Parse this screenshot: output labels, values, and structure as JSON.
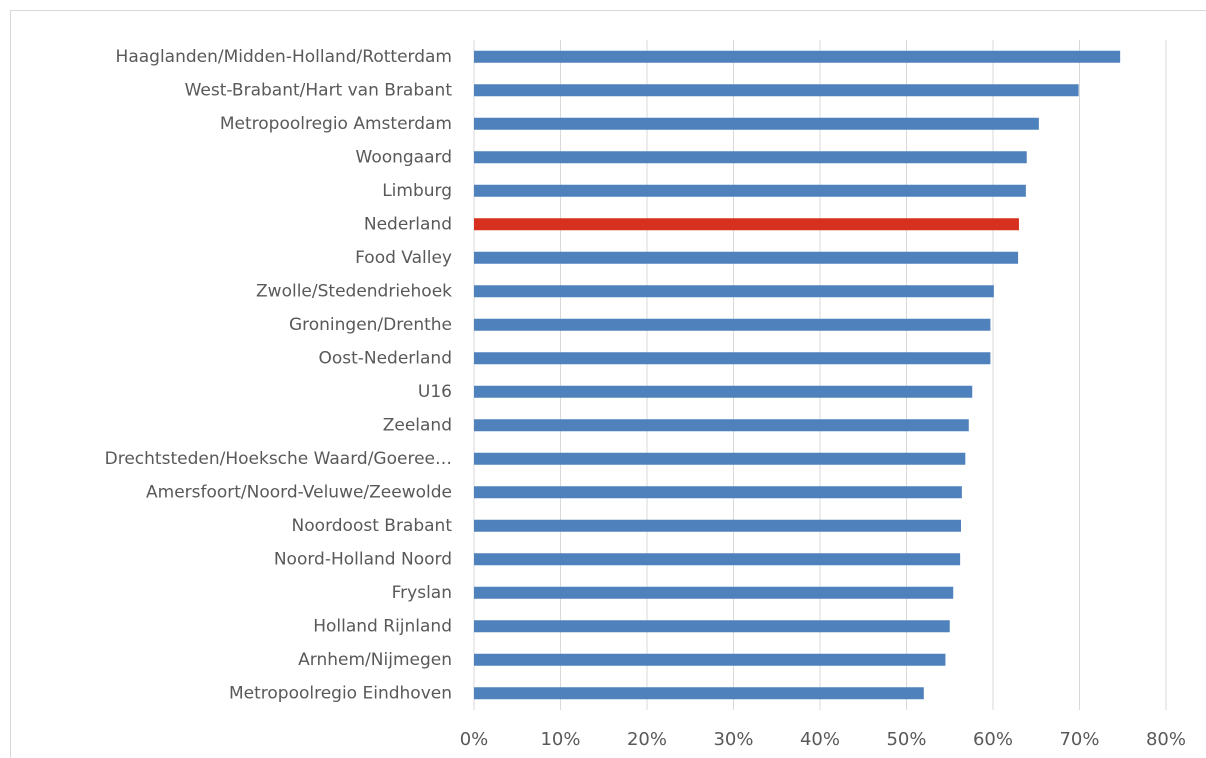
{
  "chart_data": {
    "type": "barh",
    "categories": [
      "Haaglanden/Midden-Holland/Rotterdam",
      "West-Brabant/Hart van Brabant",
      "Metropoolregio Amsterdam",
      "Woongaard",
      "Limburg",
      "Nederland",
      "Food Valley",
      "Zwolle/Stedendriehoek",
      "Groningen/Drenthe",
      "Oost-Nederland",
      "U16",
      "Zeeland",
      "Drechtsteden/Hoeksche Waard/Goeree…",
      "Amersfoort/Noord-Veluwe/Zeewolde",
      "Noordoost Brabant",
      "Noord-Holland Noord",
      "Fryslan",
      "Holland Rijnland",
      "Arnhem/Nijmegen",
      "Metropoolregio Eindhoven"
    ],
    "values": [
      74.7,
      69.9,
      65.3,
      63.9,
      63.8,
      63.0,
      62.9,
      60.1,
      59.7,
      59.7,
      57.6,
      57.2,
      56.8,
      56.4,
      56.3,
      56.2,
      55.4,
      55.0,
      54.5,
      52.0
    ],
    "colors": [
      "#4f81bd",
      "#4f81bd",
      "#4f81bd",
      "#4f81bd",
      "#4f81bd",
      "#d7301f",
      "#4f81bd",
      "#4f81bd",
      "#4f81bd",
      "#4f81bd",
      "#4f81bd",
      "#4f81bd",
      "#4f81bd",
      "#4f81bd",
      "#4f81bd",
      "#4f81bd",
      "#4f81bd",
      "#4f81bd",
      "#4f81bd",
      "#4f81bd"
    ],
    "xlim": [
      0,
      80
    ],
    "xticks": [
      {
        "value": 0,
        "label": "0%"
      },
      {
        "value": 10,
        "label": "10%"
      },
      {
        "value": 20,
        "label": "20%"
      },
      {
        "value": 30,
        "label": "30%"
      },
      {
        "value": 40,
        "label": "40%"
      },
      {
        "value": 50,
        "label": "50%"
      },
      {
        "value": 60,
        "label": "60%"
      },
      {
        "value": 70,
        "label": "70%"
      },
      {
        "value": 80,
        "label": "80%"
      }
    ],
    "grid": true
  }
}
